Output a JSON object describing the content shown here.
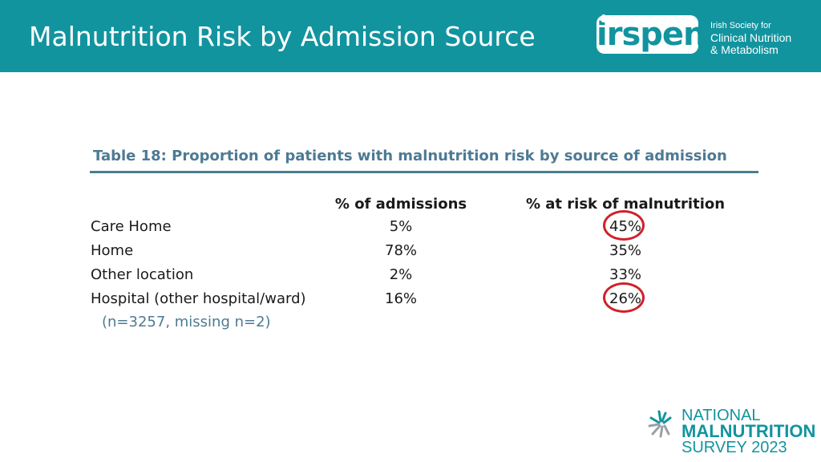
{
  "header": {
    "title": "Malnutrition Risk by Admission Source",
    "logo_text": "irspen",
    "org_line1": "Irish Society for",
    "org_line2": "Clinical Nutrition",
    "org_line3": "& Metabolism",
    "background_color": "#12949f"
  },
  "table": {
    "caption": "Table 18: Proportion of patients with malnutrition risk by source of admission",
    "columns": [
      "% of admissions",
      "% at risk of malnutrition"
    ],
    "rows": [
      {
        "label": "Care Home",
        "admissions": "5%",
        "at_risk": "45%",
        "circled": true
      },
      {
        "label": "Home",
        "admissions": "78%",
        "at_risk": "35%",
        "circled": false
      },
      {
        "label": "Other location",
        "admissions": "2%",
        "at_risk": "33%",
        "circled": false
      },
      {
        "label": "Hospital (other hospital/ward)",
        "admissions": "16%",
        "at_risk": "26%",
        "circled": true
      }
    ],
    "note": "(n=3257, missing n=2)",
    "highlight_color": "#d0202a"
  },
  "footer": {
    "line1": "NATIONAL",
    "line2": "MALNUTRITION",
    "line3": "SURVEY 2023",
    "brand_color": "#12949f"
  }
}
